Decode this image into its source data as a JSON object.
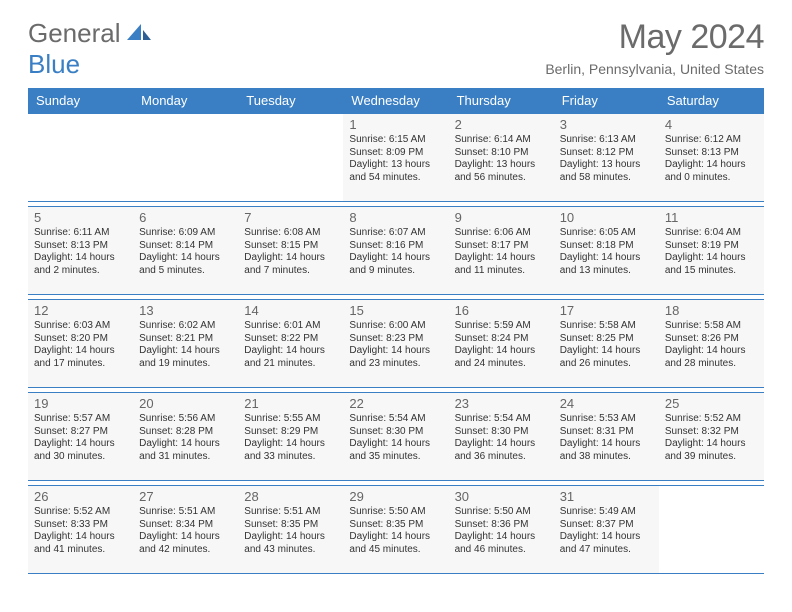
{
  "logo": {
    "word1": "General",
    "word2": "Blue"
  },
  "title": "May 2024",
  "location": "Berlin, Pennsylvania, United States",
  "colors": {
    "brand_blue": "#3a7fc4",
    "text_gray": "#6b6b6b",
    "cell_bg": "#f7f7f7",
    "cell_text": "#333333"
  },
  "day_headers": [
    "Sunday",
    "Monday",
    "Tuesday",
    "Wednesday",
    "Thursday",
    "Friday",
    "Saturday"
  ],
  "weeks": [
    [
      null,
      null,
      null,
      {
        "n": "1",
        "sr": "6:15 AM",
        "ss": "8:09 PM",
        "dl": "13 hours and 54 minutes."
      },
      {
        "n": "2",
        "sr": "6:14 AM",
        "ss": "8:10 PM",
        "dl": "13 hours and 56 minutes."
      },
      {
        "n": "3",
        "sr": "6:13 AM",
        "ss": "8:12 PM",
        "dl": "13 hours and 58 minutes."
      },
      {
        "n": "4",
        "sr": "6:12 AM",
        "ss": "8:13 PM",
        "dl": "14 hours and 0 minutes."
      }
    ],
    [
      {
        "n": "5",
        "sr": "6:11 AM",
        "ss": "8:13 PM",
        "dl": "14 hours and 2 minutes."
      },
      {
        "n": "6",
        "sr": "6:09 AM",
        "ss": "8:14 PM",
        "dl": "14 hours and 5 minutes."
      },
      {
        "n": "7",
        "sr": "6:08 AM",
        "ss": "8:15 PM",
        "dl": "14 hours and 7 minutes."
      },
      {
        "n": "8",
        "sr": "6:07 AM",
        "ss": "8:16 PM",
        "dl": "14 hours and 9 minutes."
      },
      {
        "n": "9",
        "sr": "6:06 AM",
        "ss": "8:17 PM",
        "dl": "14 hours and 11 minutes."
      },
      {
        "n": "10",
        "sr": "6:05 AM",
        "ss": "8:18 PM",
        "dl": "14 hours and 13 minutes."
      },
      {
        "n": "11",
        "sr": "6:04 AM",
        "ss": "8:19 PM",
        "dl": "14 hours and 15 minutes."
      }
    ],
    [
      {
        "n": "12",
        "sr": "6:03 AM",
        "ss": "8:20 PM",
        "dl": "14 hours and 17 minutes."
      },
      {
        "n": "13",
        "sr": "6:02 AM",
        "ss": "8:21 PM",
        "dl": "14 hours and 19 minutes."
      },
      {
        "n": "14",
        "sr": "6:01 AM",
        "ss": "8:22 PM",
        "dl": "14 hours and 21 minutes."
      },
      {
        "n": "15",
        "sr": "6:00 AM",
        "ss": "8:23 PM",
        "dl": "14 hours and 23 minutes."
      },
      {
        "n": "16",
        "sr": "5:59 AM",
        "ss": "8:24 PM",
        "dl": "14 hours and 24 minutes."
      },
      {
        "n": "17",
        "sr": "5:58 AM",
        "ss": "8:25 PM",
        "dl": "14 hours and 26 minutes."
      },
      {
        "n": "18",
        "sr": "5:58 AM",
        "ss": "8:26 PM",
        "dl": "14 hours and 28 minutes."
      }
    ],
    [
      {
        "n": "19",
        "sr": "5:57 AM",
        "ss": "8:27 PM",
        "dl": "14 hours and 30 minutes."
      },
      {
        "n": "20",
        "sr": "5:56 AM",
        "ss": "8:28 PM",
        "dl": "14 hours and 31 minutes."
      },
      {
        "n": "21",
        "sr": "5:55 AM",
        "ss": "8:29 PM",
        "dl": "14 hours and 33 minutes."
      },
      {
        "n": "22",
        "sr": "5:54 AM",
        "ss": "8:30 PM",
        "dl": "14 hours and 35 minutes."
      },
      {
        "n": "23",
        "sr": "5:54 AM",
        "ss": "8:30 PM",
        "dl": "14 hours and 36 minutes."
      },
      {
        "n": "24",
        "sr": "5:53 AM",
        "ss": "8:31 PM",
        "dl": "14 hours and 38 minutes."
      },
      {
        "n": "25",
        "sr": "5:52 AM",
        "ss": "8:32 PM",
        "dl": "14 hours and 39 minutes."
      }
    ],
    [
      {
        "n": "26",
        "sr": "5:52 AM",
        "ss": "8:33 PM",
        "dl": "14 hours and 41 minutes."
      },
      {
        "n": "27",
        "sr": "5:51 AM",
        "ss": "8:34 PM",
        "dl": "14 hours and 42 minutes."
      },
      {
        "n": "28",
        "sr": "5:51 AM",
        "ss": "8:35 PM",
        "dl": "14 hours and 43 minutes."
      },
      {
        "n": "29",
        "sr": "5:50 AM",
        "ss": "8:35 PM",
        "dl": "14 hours and 45 minutes."
      },
      {
        "n": "30",
        "sr": "5:50 AM",
        "ss": "8:36 PM",
        "dl": "14 hours and 46 minutes."
      },
      {
        "n": "31",
        "sr": "5:49 AM",
        "ss": "8:37 PM",
        "dl": "14 hours and 47 minutes."
      },
      null
    ]
  ],
  "labels": {
    "sunrise": "Sunrise: ",
    "sunset": "Sunset: ",
    "daylight": "Daylight: "
  }
}
